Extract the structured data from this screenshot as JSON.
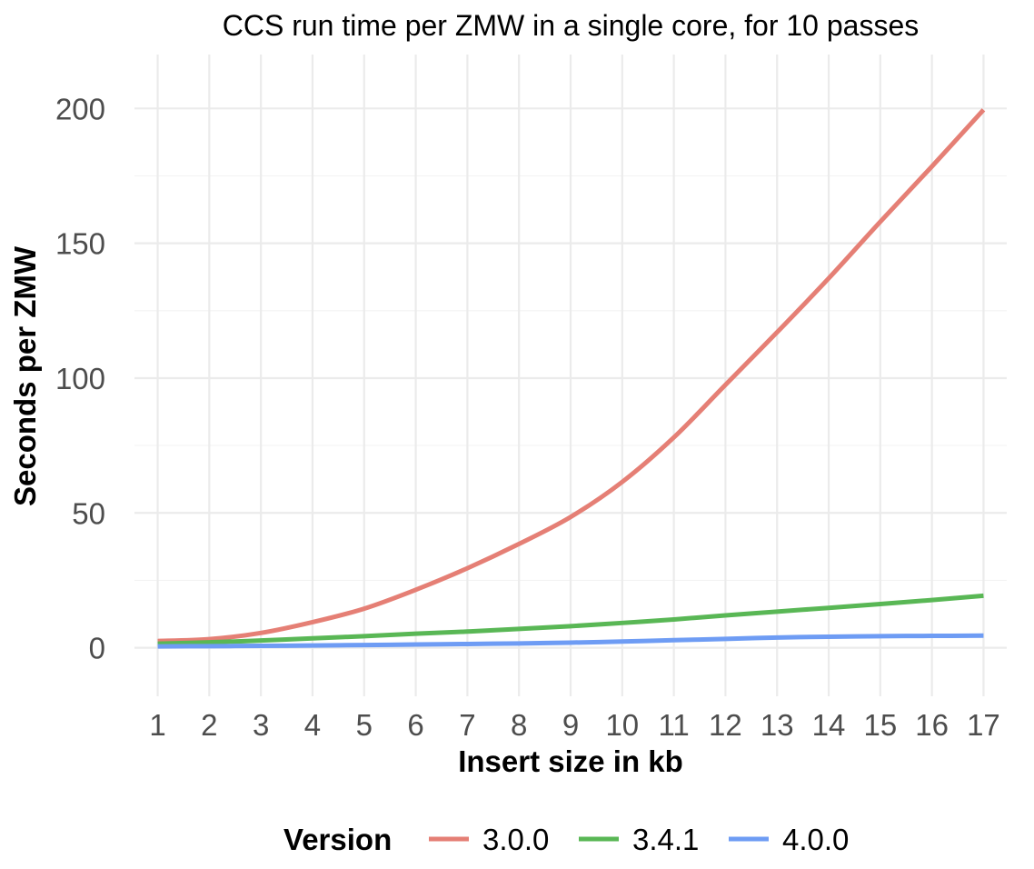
{
  "chart_data": {
    "type": "line",
    "title": "CCS run time per ZMW in a single core, for 10 passes",
    "xlabel": "Insert size in kb",
    "ylabel": "Seconds per ZMW",
    "x_ticks": [
      1,
      2,
      3,
      4,
      5,
      6,
      7,
      8,
      9,
      10,
      11,
      12,
      13,
      14,
      15,
      16,
      17
    ],
    "y_ticks": [
      0,
      50,
      100,
      150,
      200
    ],
    "xlim": [
      0.55,
      17.45
    ],
    "ylim": [
      -18,
      220
    ],
    "grid": true,
    "legend": {
      "title": "Version",
      "position": "bottom"
    },
    "x": [
      1,
      2,
      3,
      4,
      5,
      6,
      7,
      8,
      9,
      10,
      11,
      12,
      13,
      14,
      15,
      16,
      17
    ],
    "series": [
      {
        "name": "3.0.0",
        "color": "#e57f75",
        "values": [
          2.5,
          3.2,
          5.5,
          9.5,
          14.5,
          21.5,
          29.5,
          38.5,
          48.5,
          61.5,
          78,
          97.5,
          117,
          137,
          158,
          178.5,
          199.5
        ]
      },
      {
        "name": "3.4.1",
        "color": "#59b755",
        "values": [
          1.5,
          2.0,
          2.7,
          3.5,
          4.3,
          5.2,
          6.0,
          7.0,
          8.0,
          9.2,
          10.5,
          12.0,
          13.4,
          14.8,
          16.2,
          17.7,
          19.3
        ]
      },
      {
        "name": "4.0.0",
        "color": "#6e9cf4",
        "values": [
          0.5,
          0.6,
          0.7,
          0.85,
          1.0,
          1.2,
          1.4,
          1.6,
          1.9,
          2.3,
          2.8,
          3.3,
          3.8,
          4.1,
          4.3,
          4.4,
          4.5
        ]
      }
    ]
  }
}
